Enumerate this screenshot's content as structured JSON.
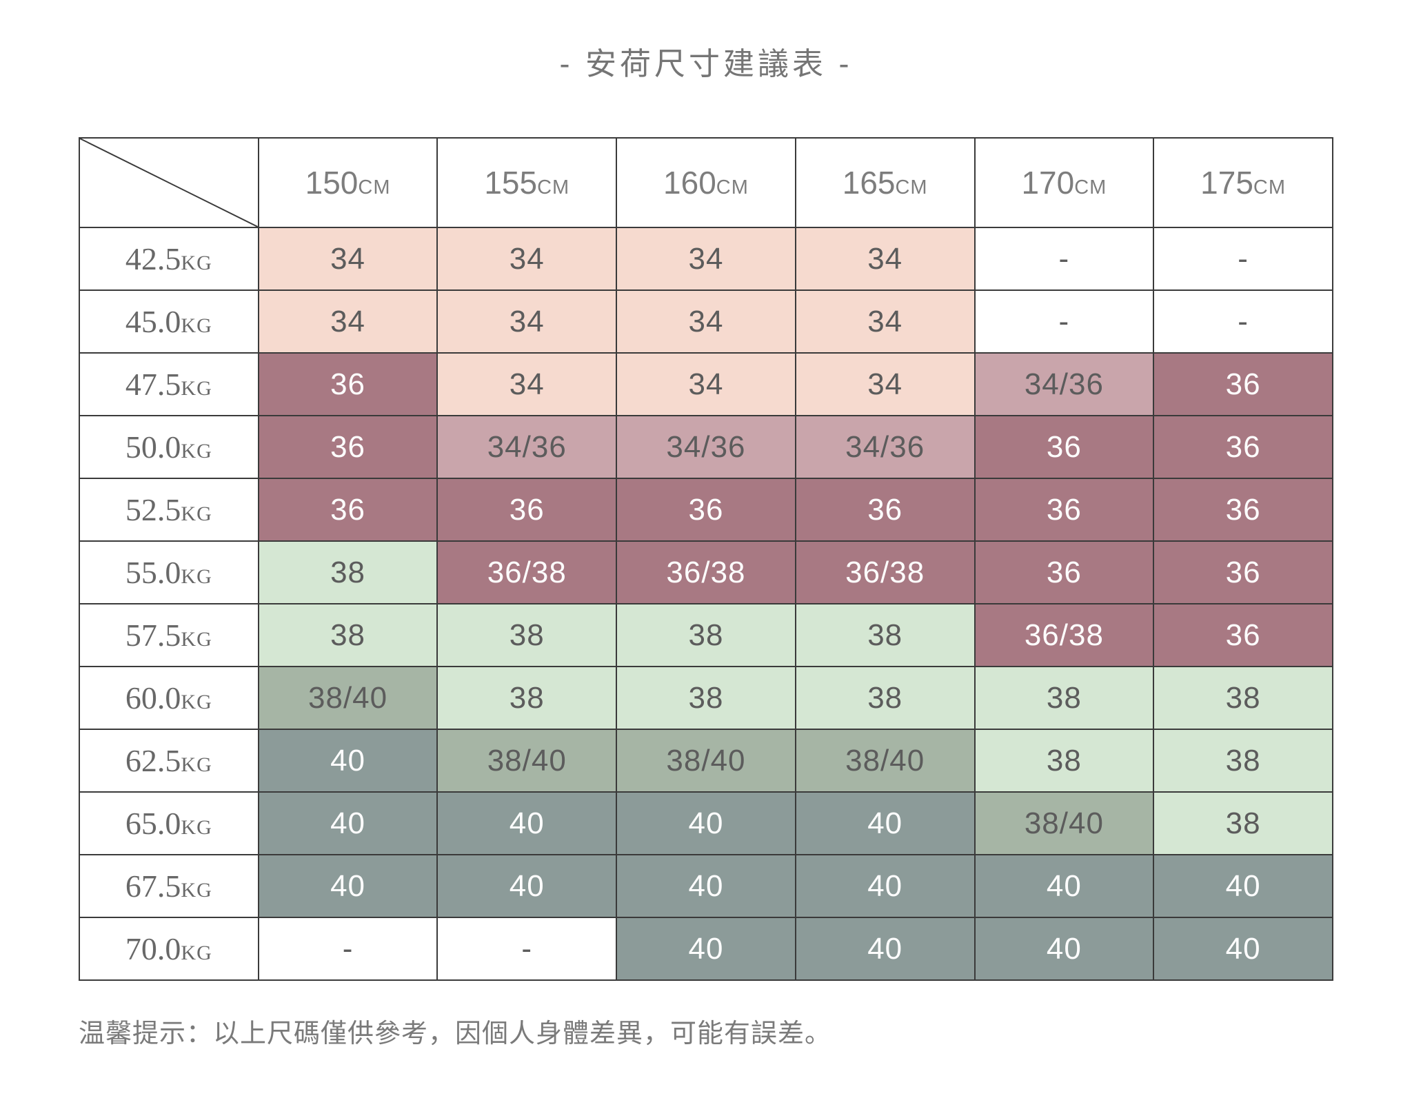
{
  "title": "- 安荷尺寸建議表 -",
  "footer_note": "温馨提示：以上尺碼僅供參考，因個人身體差異，可能有誤差。",
  "table": {
    "height_headers": [
      {
        "value": "150",
        "unit": "CM"
      },
      {
        "value": "155",
        "unit": "CM"
      },
      {
        "value": "160",
        "unit": "CM"
      },
      {
        "value": "165",
        "unit": "CM"
      },
      {
        "value": "170",
        "unit": "CM"
      },
      {
        "value": "175",
        "unit": "CM"
      }
    ],
    "weight_unit": "KG",
    "rows": [
      {
        "weight": "42.5",
        "values": [
          "34",
          "34",
          "34",
          "34",
          "-",
          "-"
        ]
      },
      {
        "weight": "45.0",
        "values": [
          "34",
          "34",
          "34",
          "34",
          "-",
          "-"
        ]
      },
      {
        "weight": "47.5",
        "values": [
          "36",
          "34",
          "34",
          "34",
          "34/36",
          "36"
        ]
      },
      {
        "weight": "50.0",
        "values": [
          "36",
          "34/36",
          "34/36",
          "34/36",
          "36",
          "36"
        ]
      },
      {
        "weight": "52.5",
        "values": [
          "36",
          "36",
          "36",
          "36",
          "36",
          "36"
        ]
      },
      {
        "weight": "55.0",
        "values": [
          "38",
          "36/38",
          "36/38",
          "36/38",
          "36",
          "36"
        ]
      },
      {
        "weight": "57.5",
        "values": [
          "38",
          "38",
          "38",
          "38",
          "36/38",
          "36"
        ]
      },
      {
        "weight": "60.0",
        "values": [
          "38/40",
          "38",
          "38",
          "38",
          "38",
          "38"
        ]
      },
      {
        "weight": "62.5",
        "values": [
          "40",
          "38/40",
          "38/40",
          "38/40",
          "38",
          "38"
        ]
      },
      {
        "weight": "65.0",
        "values": [
          "40",
          "40",
          "40",
          "40",
          "38/40",
          "38"
        ]
      },
      {
        "weight": "67.5",
        "values": [
          "40",
          "40",
          "40",
          "40",
          "40",
          "40"
        ]
      },
      {
        "weight": "70.0",
        "values": [
          "-",
          "-",
          "40",
          "40",
          "40",
          "40"
        ]
      }
    ],
    "value_tone_map": {
      "34": "pink",
      "34/36": "mauve",
      "36": "dark-mauve",
      "36/38": "dark-mauve",
      "38": "green",
      "38/40": "sage",
      "40": "slate",
      "-": "none"
    }
  },
  "colors": {
    "light_pink": "#F6DACF",
    "medium_mauve": "#C9A5AB",
    "dark_mauve": "#A87983",
    "light_green": "#D5E7D3",
    "medium_sage": "#A6B5A5",
    "dark_slate": "#8C9B99",
    "grid_line": "#3a3a3a",
    "cell_text": "#5c5c5c",
    "header_text": "#7d7d7d",
    "white_text": "#fdfdfd"
  },
  "chart_data": {
    "type": "table",
    "title": "- 安荷尺寸建議表 -",
    "columns": [
      "150CM",
      "155CM",
      "160CM",
      "165CM",
      "170CM",
      "175CM"
    ],
    "row_labels": [
      "42.5KG",
      "45.0KG",
      "47.5KG",
      "50.0KG",
      "52.5KG",
      "55.0KG",
      "57.5KG",
      "60.0KG",
      "62.5KG",
      "65.0KG",
      "67.5KG",
      "70.0KG"
    ],
    "values": [
      [
        "34",
        "34",
        "34",
        "34",
        "-",
        "-"
      ],
      [
        "34",
        "34",
        "34",
        "34",
        "-",
        "-"
      ],
      [
        "36",
        "34",
        "34",
        "34",
        "34/36",
        "36"
      ],
      [
        "36",
        "34/36",
        "34/36",
        "34/36",
        "36",
        "36"
      ],
      [
        "36",
        "36",
        "36",
        "36",
        "36",
        "36"
      ],
      [
        "38",
        "36/38",
        "36/38",
        "36/38",
        "36",
        "36"
      ],
      [
        "38",
        "38",
        "38",
        "38",
        "36/38",
        "36"
      ],
      [
        "38/40",
        "38",
        "38",
        "38",
        "38",
        "38"
      ],
      [
        "40",
        "38/40",
        "38/40",
        "38/40",
        "38",
        "38"
      ],
      [
        "40",
        "40",
        "40",
        "40",
        "38/40",
        "38"
      ],
      [
        "40",
        "40",
        "40",
        "40",
        "40",
        "40"
      ],
      [
        "-",
        "-",
        "40",
        "40",
        "40",
        "40"
      ]
    ],
    "note": "温馨提示：以上尺碼僅供參考，因個人身體差異，可能有誤差。"
  }
}
